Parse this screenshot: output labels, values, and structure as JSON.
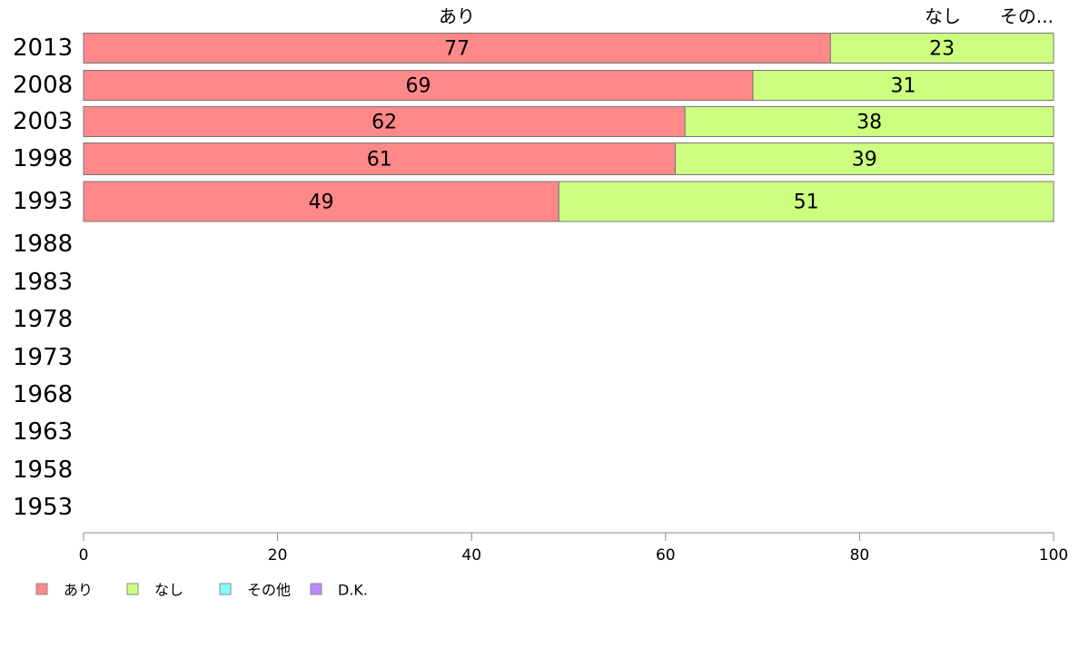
{
  "chart_data": {
    "type": "bar",
    "orientation": "horizontal",
    "stacked": true,
    "categories": [
      "2013",
      "2008",
      "2003",
      "1998",
      "1993",
      "1988",
      "1983",
      "1978",
      "1973",
      "1968",
      "1963",
      "1958",
      "1953"
    ],
    "series": [
      {
        "name": "あり",
        "color": "#ff8888",
        "values": [
          77,
          69,
          62,
          61,
          49,
          null,
          null,
          null,
          null,
          null,
          null,
          null,
          null
        ]
      },
      {
        "name": "なし",
        "color": "#ccff80",
        "values": [
          23,
          31,
          38,
          39,
          51,
          null,
          null,
          null,
          null,
          null,
          null,
          null,
          null
        ]
      },
      {
        "name": "その他",
        "color": "#80ffff",
        "values": [
          0,
          0,
          0,
          0,
          0,
          null,
          null,
          null,
          null,
          null,
          null,
          null,
          null
        ]
      },
      {
        "name": "D.K.",
        "color": "#bb88ff",
        "values": [
          0,
          0,
          0,
          0,
          0,
          null,
          null,
          null,
          null,
          null,
          null,
          null,
          null
        ]
      }
    ],
    "top_labels": [
      "あり",
      "なし",
      "その..."
    ],
    "xlim": [
      0,
      100
    ],
    "xticks": [
      "0",
      "20",
      "40",
      "60",
      "80",
      "100"
    ],
    "grid": false,
    "legend_position": "bottom-left"
  }
}
